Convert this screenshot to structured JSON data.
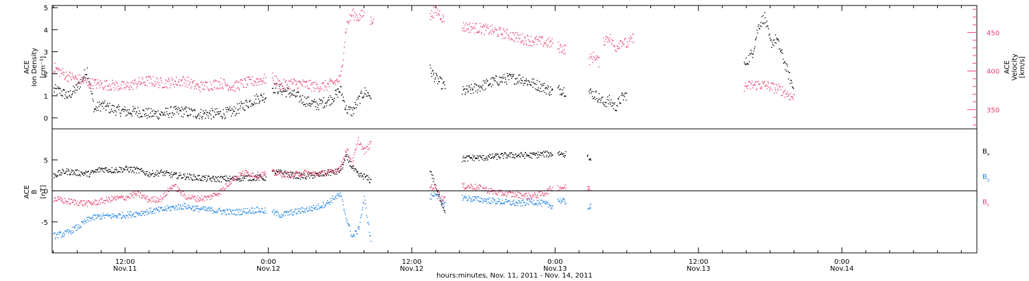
{
  "chart_data": [
    {
      "type": "scatter",
      "panel": "top",
      "xlabel": "hours:minutes, Nov. 11, 2011 - Nov. 14, 2011",
      "x_ticks": [
        {
          "time": "12:00",
          "date": "Nov.11"
        },
        {
          "time": "0:00",
          "date": "Nov.12"
        },
        {
          "time": "12:00",
          "date": "Nov.12"
        },
        {
          "time": "0:00",
          "date": "Nov.13"
        },
        {
          "time": "12:00",
          "date": "Nov.13"
        },
        {
          "time": "0:00",
          "date": "Nov.14"
        }
      ],
      "left_axis": {
        "label_lines": [
          "ACE",
          "Ion Density"
        ],
        "unit": "[cm⁻³]",
        "ylim": [
          -0.5,
          5.1
        ],
        "ticks": [
          "0",
          "1",
          "2",
          "3",
          "4",
          "5"
        ]
      },
      "right_axis": {
        "label_lines": [
          "ACE",
          "Velocity"
        ],
        "unit": "[km/s]",
        "ylim": [
          325,
          485
        ],
        "ticks": [
          "350",
          "400",
          "450"
        ],
        "color": "#e8406e"
      },
      "series": [
        {
          "color": "#000000",
          "axis": "left",
          "segments": [
            {
              "x": [
                6.0,
                6.6,
                7.2,
                8.0,
                8.8,
                9.4,
                10.0,
                11.0,
                12.0,
                13.0,
                14.0,
                15.0,
                16.0,
                17.0,
                18.0,
                19.0,
                20.0,
                21.0,
                22.0,
                23.0,
                23.8
              ],
              "y": [
                1.3,
                1.2,
                1.0,
                1.4,
                2.2,
                0.4,
                0.6,
                0.4,
                0.3,
                0.3,
                0.2,
                0.2,
                0.3,
                0.3,
                0.2,
                0.2,
                0.2,
                0.3,
                0.6,
                0.9,
                1.0
              ]
            },
            {
              "x": [
                24.3,
                25.0,
                26.0,
                27.0,
                28.0,
                29.0,
                29.5,
                30.0,
                30.5,
                31.0,
                31.5,
                32.0,
                32.6
              ],
              "y": [
                1.4,
                1.3,
                1.1,
                0.8,
                0.6,
                0.8,
                1.0,
                1.3,
                0.4,
                0.3,
                0.8,
                1.2,
                1.0
              ]
            },
            {
              "x": [
                37.5,
                38.0,
                38.4,
                38.8
              ],
              "y": [
                2.2,
                1.8,
                1.6,
                1.4
              ]
            },
            {
              "x": [
                40.2,
                41.0,
                42.0,
                43.0,
                44.0,
                45.0,
                46.0,
                47.0,
                47.8
              ],
              "y": [
                1.2,
                1.3,
                1.5,
                1.7,
                1.8,
                1.8,
                1.6,
                1.4,
                1.2
              ]
            },
            {
              "x": [
                48.2,
                48.6,
                48.9
              ],
              "y": [
                1.3,
                1.3,
                1.2
              ]
            },
            {
              "x": [
                50.8,
                51.5,
                52.0,
                52.5,
                53.0,
                53.5,
                54.0
              ],
              "y": [
                1.2,
                1.0,
                0.7,
                0.8,
                0.5,
                0.9,
                1.1
              ]
            },
            {
              "x": [
                63.8,
                64.5,
                65.0,
                65.5,
                66.0,
                66.5,
                67.0,
                67.5,
                68.0
              ],
              "y": [
                2.4,
                3.0,
                4.2,
                4.6,
                3.4,
                3.6,
                2.8,
                2.0,
                1.2
              ]
            }
          ]
        },
        {
          "color": "#e8406e",
          "axis": "right",
          "segments": [
            {
              "x": [
                6.0,
                7.0,
                8.0,
                9.0,
                10.0,
                11.0,
                12.0,
                13.0,
                14.0,
                15.0,
                16.0,
                17.0,
                18.0,
                19.0,
                20.0,
                21.0,
                22.0,
                23.0,
                23.8
              ],
              "y": [
                405,
                395,
                390,
                385,
                383,
                382,
                380,
                385,
                388,
                385,
                386,
                388,
                380,
                382,
                385,
                380,
                385,
                388,
                390
              ]
            },
            {
              "x": [
                24.3,
                25.0,
                26.0,
                27.0,
                28.0,
                29.0,
                29.5,
                30.0,
                30.5,
                31.0,
                31.5,
                32.0
              ],
              "y": [
                392,
                382,
                385,
                383,
                380,
                382,
                386,
                390,
                460,
                475,
                470,
                475
              ]
            },
            {
              "x": [
                32.5,
                32.8
              ],
              "y": [
                465,
                470
              ]
            },
            {
              "x": [
                37.5,
                37.9,
                38.3,
                38.7
              ],
              "y": [
                470,
                480,
                475,
                465
              ]
            },
            {
              "x": [
                40.2,
                41.0,
                42.0,
                43.0,
                44.0,
                45.0,
                46.0,
                47.0,
                47.8
              ],
              "y": [
                458,
                457,
                455,
                452,
                448,
                443,
                440,
                438,
                436
              ]
            },
            {
              "x": [
                48.2,
                48.6,
                48.9
              ],
              "y": [
                432,
                430,
                428
              ]
            },
            {
              "x": [
                50.8,
                51.3,
                51.7
              ],
              "y": [
                415,
                420,
                410
              ]
            },
            {
              "x": [
                52.0,
                52.5,
                53.0,
                53.5,
                54.0,
                54.6
              ],
              "y": [
                440,
                445,
                430,
                440,
                435,
                445
              ]
            },
            {
              "x": [
                63.8,
                64.5,
                65.0,
                65.5,
                66.0,
                66.5,
                67.0,
                67.5,
                68.0
              ],
              "y": [
                380,
                382,
                383,
                382,
                380,
                378,
                375,
                370,
                365
              ]
            }
          ]
        }
      ]
    },
    {
      "type": "scatter",
      "panel": "bottom",
      "left_axis": {
        "label_lines": [
          "ACE",
          "B"
        ],
        "unit": "[nT]",
        "ylim": [
          -10,
          10
        ],
        "ticks": [
          "-5",
          "0",
          "5"
        ]
      },
      "series": [
        {
          "name": "B",
          "subscript": "x",
          "color": "#000000",
          "segments": [
            {
              "x": [
                6.0,
                7.0,
                8.0,
                9.0,
                10.0,
                11.0,
                12.0,
                13.0,
                14.0,
                15.0,
                16.0,
                17.0,
                18.0,
                19.0,
                20.0,
                21.0,
                22.0,
                23.0,
                23.8
              ],
              "y": [
                2.6,
                3.2,
                3.0,
                2.8,
                3.6,
                3.4,
                3.6,
                3.4,
                2.8,
                3.0,
                2.6,
                2.4,
                2.2,
                2.0,
                2.0,
                2.0,
                2.2,
                2.2,
                2.2
              ]
            },
            {
              "x": [
                24.3,
                25.0,
                26.0,
                27.0,
                28.0,
                29.0,
                29.5,
                30.0,
                30.5,
                31.0,
                31.5,
                32.0,
                32.6
              ],
              "y": [
                3.0,
                3.0,
                2.6,
                2.4,
                2.6,
                3.0,
                3.0,
                3.4,
                5.6,
                3.8,
                2.6,
                2.4,
                1.6
              ]
            },
            {
              "x": [
                37.5,
                38.0,
                38.4,
                38.8
              ],
              "y": [
                3.6,
                0.5,
                -1.5,
                -3.4
              ]
            },
            {
              "x": [
                40.2,
                41.0,
                42.0,
                43.0,
                44.0,
                45.0,
                46.0,
                47.0,
                47.8
              ],
              "y": [
                5.2,
                5.4,
                5.4,
                5.6,
                5.8,
                5.8,
                5.8,
                6.0,
                6.0
              ]
            },
            {
              "x": [
                48.2,
                48.6,
                48.9
              ],
              "y": [
                6.2,
                6.0,
                6.0
              ]
            },
            {
              "x": [
                50.8
              ],
              "y": [
                5.4
              ]
            }
          ]
        },
        {
          "name": "B",
          "subscript": "y",
          "color": "#1a7fe0",
          "segments": [
            {
              "x": [
                6.0,
                7.0,
                8.0,
                9.0,
                10.0,
                11.0,
                12.0,
                13.0,
                14.0,
                15.0,
                16.0,
                17.0,
                18.0,
                19.0,
                20.0,
                21.0,
                22.0,
                23.0,
                23.8
              ],
              "y": [
                -7.2,
                -6.8,
                -5.8,
                -4.4,
                -4.0,
                -4.0,
                -3.8,
                -3.6,
                -3.2,
                -3.0,
                -2.6,
                -2.4,
                -2.8,
                -3.0,
                -3.2,
                -3.4,
                -3.2,
                -3.0,
                -3.2
              ]
            },
            {
              "x": [
                24.3,
                25.0,
                26.0,
                27.0,
                28.0,
                29.0,
                29.5,
                30.0,
                30.5,
                31.0,
                31.5,
                32.0,
                32.6
              ],
              "y": [
                -3.4,
                -3.8,
                -3.4,
                -3.0,
                -2.6,
                -1.8,
                -1.0,
                -0.6,
                -4.4,
                -7.4,
                -6.2,
                -1.2,
                -8.6
              ]
            },
            {
              "x": [
                37.5,
                38.0,
                38.4,
                38.8
              ],
              "y": [
                -1.0,
                -0.2,
                -1.8,
                -2.0
              ]
            },
            {
              "x": [
                40.2,
                41.0,
                42.0,
                43.0,
                44.0,
                45.0,
                46.0,
                47.0,
                47.8
              ],
              "y": [
                -1.0,
                -1.2,
                -1.4,
                -1.6,
                -1.8,
                -2.0,
                -1.6,
                -2.0,
                -2.4
              ]
            },
            {
              "x": [
                48.2,
                48.6,
                48.9
              ],
              "y": [
                -1.4,
                -1.6,
                -1.8
              ]
            },
            {
              "x": [
                50.8
              ],
              "y": [
                -2.4
              ]
            }
          ]
        },
        {
          "name": "B",
          "subscript": "z",
          "color": "#e8406e",
          "segments": [
            {
              "x": [
                6.0,
                7.0,
                8.0,
                9.0,
                10.0,
                11.0,
                12.0,
                13.0,
                14.0,
                15.0,
                16.0,
                17.0,
                18.0,
                19.0,
                20.0,
                21.0,
                22.0,
                23.0,
                23.8
              ],
              "y": [
                -1.2,
                -1.6,
                -1.8,
                -2.0,
                -1.6,
                -1.2,
                -1.0,
                -0.4,
                -1.4,
                -1.2,
                1.0,
                -0.8,
                -1.2,
                -1.0,
                0.0,
                2.0,
                3.0,
                2.6,
                2.8
              ]
            },
            {
              "x": [
                24.3,
                25.0,
                26.0,
                27.0,
                28.0,
                29.0,
                29.5,
                30.0,
                30.5,
                31.0,
                31.5,
                32.0,
                32.6
              ],
              "y": [
                3.0,
                2.8,
                2.6,
                3.0,
                2.8,
                3.0,
                3.2,
                3.8,
                6.8,
                4.6,
                8.2,
                6.4,
                7.8
              ]
            },
            {
              "x": [
                37.5,
                38.0,
                38.4,
                38.8
              ],
              "y": [
                0.8,
                0.6,
                -1.2,
                -1.0
              ]
            },
            {
              "x": [
                40.2,
                41.0,
                42.0,
                43.0,
                44.0,
                45.0,
                46.0,
                47.0,
                47.8
              ],
              "y": [
                0.8,
                0.8,
                0.4,
                -0.2,
                -0.4,
                -0.6,
                -0.8,
                -0.4,
                0.6
              ]
            },
            {
              "x": [
                48.2,
                48.6,
                48.9
              ],
              "y": [
                0.6,
                0.6,
                0.6
              ]
            },
            {
              "x": [
                50.8
              ],
              "y": [
                0.6
              ]
            }
          ]
        }
      ]
    }
  ]
}
